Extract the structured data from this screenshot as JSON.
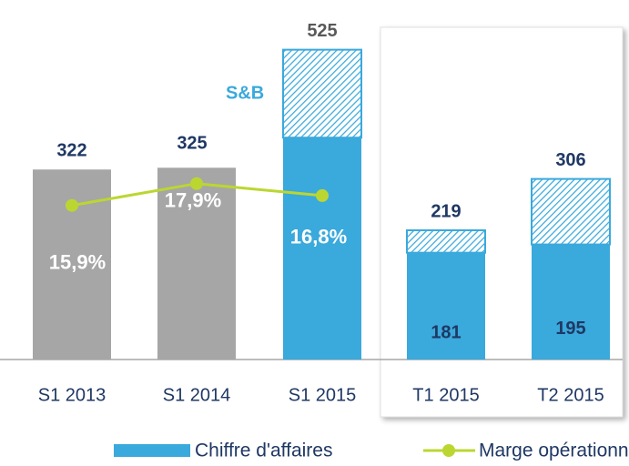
{
  "chart_data": {
    "type": "bar",
    "categories": [
      "S1 2013",
      "S1 2014",
      "S1 2015",
      "T1 2015",
      "T2 2015"
    ],
    "series": [
      {
        "name": "Chiffre d'affaires",
        "color": "#3aa9dc",
        "colors": [
          "#a6a6a6",
          "#a6a6a6",
          "#3aa9dc",
          "#3aa9dc",
          "#3aa9dc"
        ],
        "values": [
          322,
          325,
          376,
          181,
          195
        ],
        "value_labels": [
          null,
          null,
          null,
          "181",
          "195"
        ]
      },
      {
        "name": "S&B",
        "color": "#3aa9dc",
        "hatched": true,
        "values": [
          null,
          null,
          149,
          38,
          111
        ]
      },
      {
        "name": "Marge opérationnelle",
        "type": "line",
        "axis": "y2",
        "color": "#bcd631",
        "values": [
          15.9,
          17.9,
          16.8,
          null,
          null
        ],
        "value_labels": [
          "15,9%",
          "17,9%",
          "16,8%",
          null,
          null
        ]
      }
    ],
    "totals": [
      322,
      325,
      525,
      219,
      306
    ],
    "ylim": [
      0,
      600
    ],
    "y2lim": [
      1.8,
      34.2
    ],
    "legend": "bottom"
  }
}
